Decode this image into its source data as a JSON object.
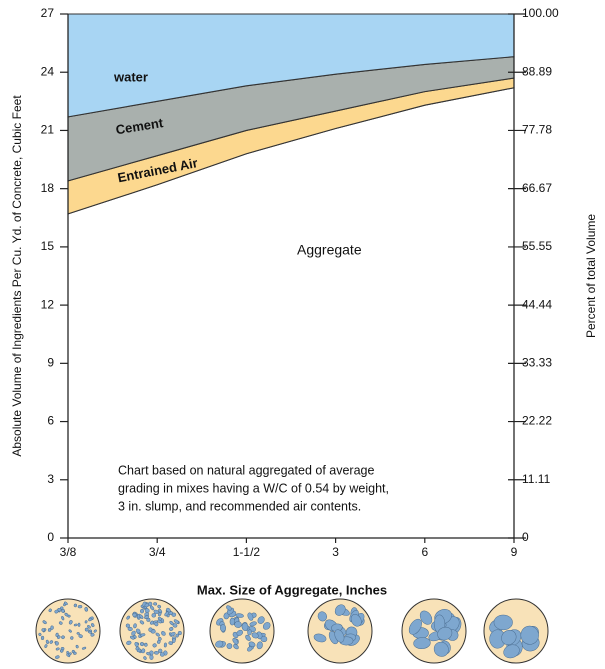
{
  "chart_data": {
    "type": "stacked-area",
    "y_label": "Absolute  Volume of Ingredients Per Cu. Yd. of Concrete, Cubic Feet",
    "y2_label": "Percent of total Volume",
    "x_label": "Max. Size of Aggregate, Inches",
    "annotation": [
      "Chart based on natural aggregated of average",
      "grading in mixes having a W/C of 0.54 by weight,",
      "3 in. slump, and recommended air contents."
    ],
    "categories": [
      "3/8",
      "3/4",
      "1-1/2",
      "3",
      "6",
      "9"
    ],
    "series": [
      {
        "name": "Aggregate",
        "color": "#ffffff",
        "values": [
          16.7,
          18.2,
          19.8,
          21.1,
          22.3,
          23.2
        ]
      },
      {
        "name": "Entrained Air",
        "color": "#fcd88f",
        "values": [
          1.7,
          1.5,
          1.2,
          0.9,
          0.7,
          0.5
        ]
      },
      {
        "name": "Cement",
        "color": "#a9b0ad",
        "values": [
          3.3,
          2.8,
          2.3,
          1.9,
          1.4,
          1.1
        ]
      },
      {
        "name": "water",
        "color": "#a8d5f3",
        "values": [
          5.3,
          4.5,
          3.7,
          3.1,
          2.6,
          2.2
        ]
      }
    ],
    "ylim": [
      0,
      27
    ],
    "yticks": [
      0,
      3,
      6,
      9,
      12,
      15,
      18,
      21,
      24,
      27
    ],
    "y2lim": [
      0,
      100
    ],
    "y2ticks": [
      0,
      11.11,
      22.22,
      33.33,
      44.44,
      55.55,
      66.67,
      77.78,
      88.89,
      {
        "value": 100,
        "label": "100.00"
      }
    ]
  }
}
